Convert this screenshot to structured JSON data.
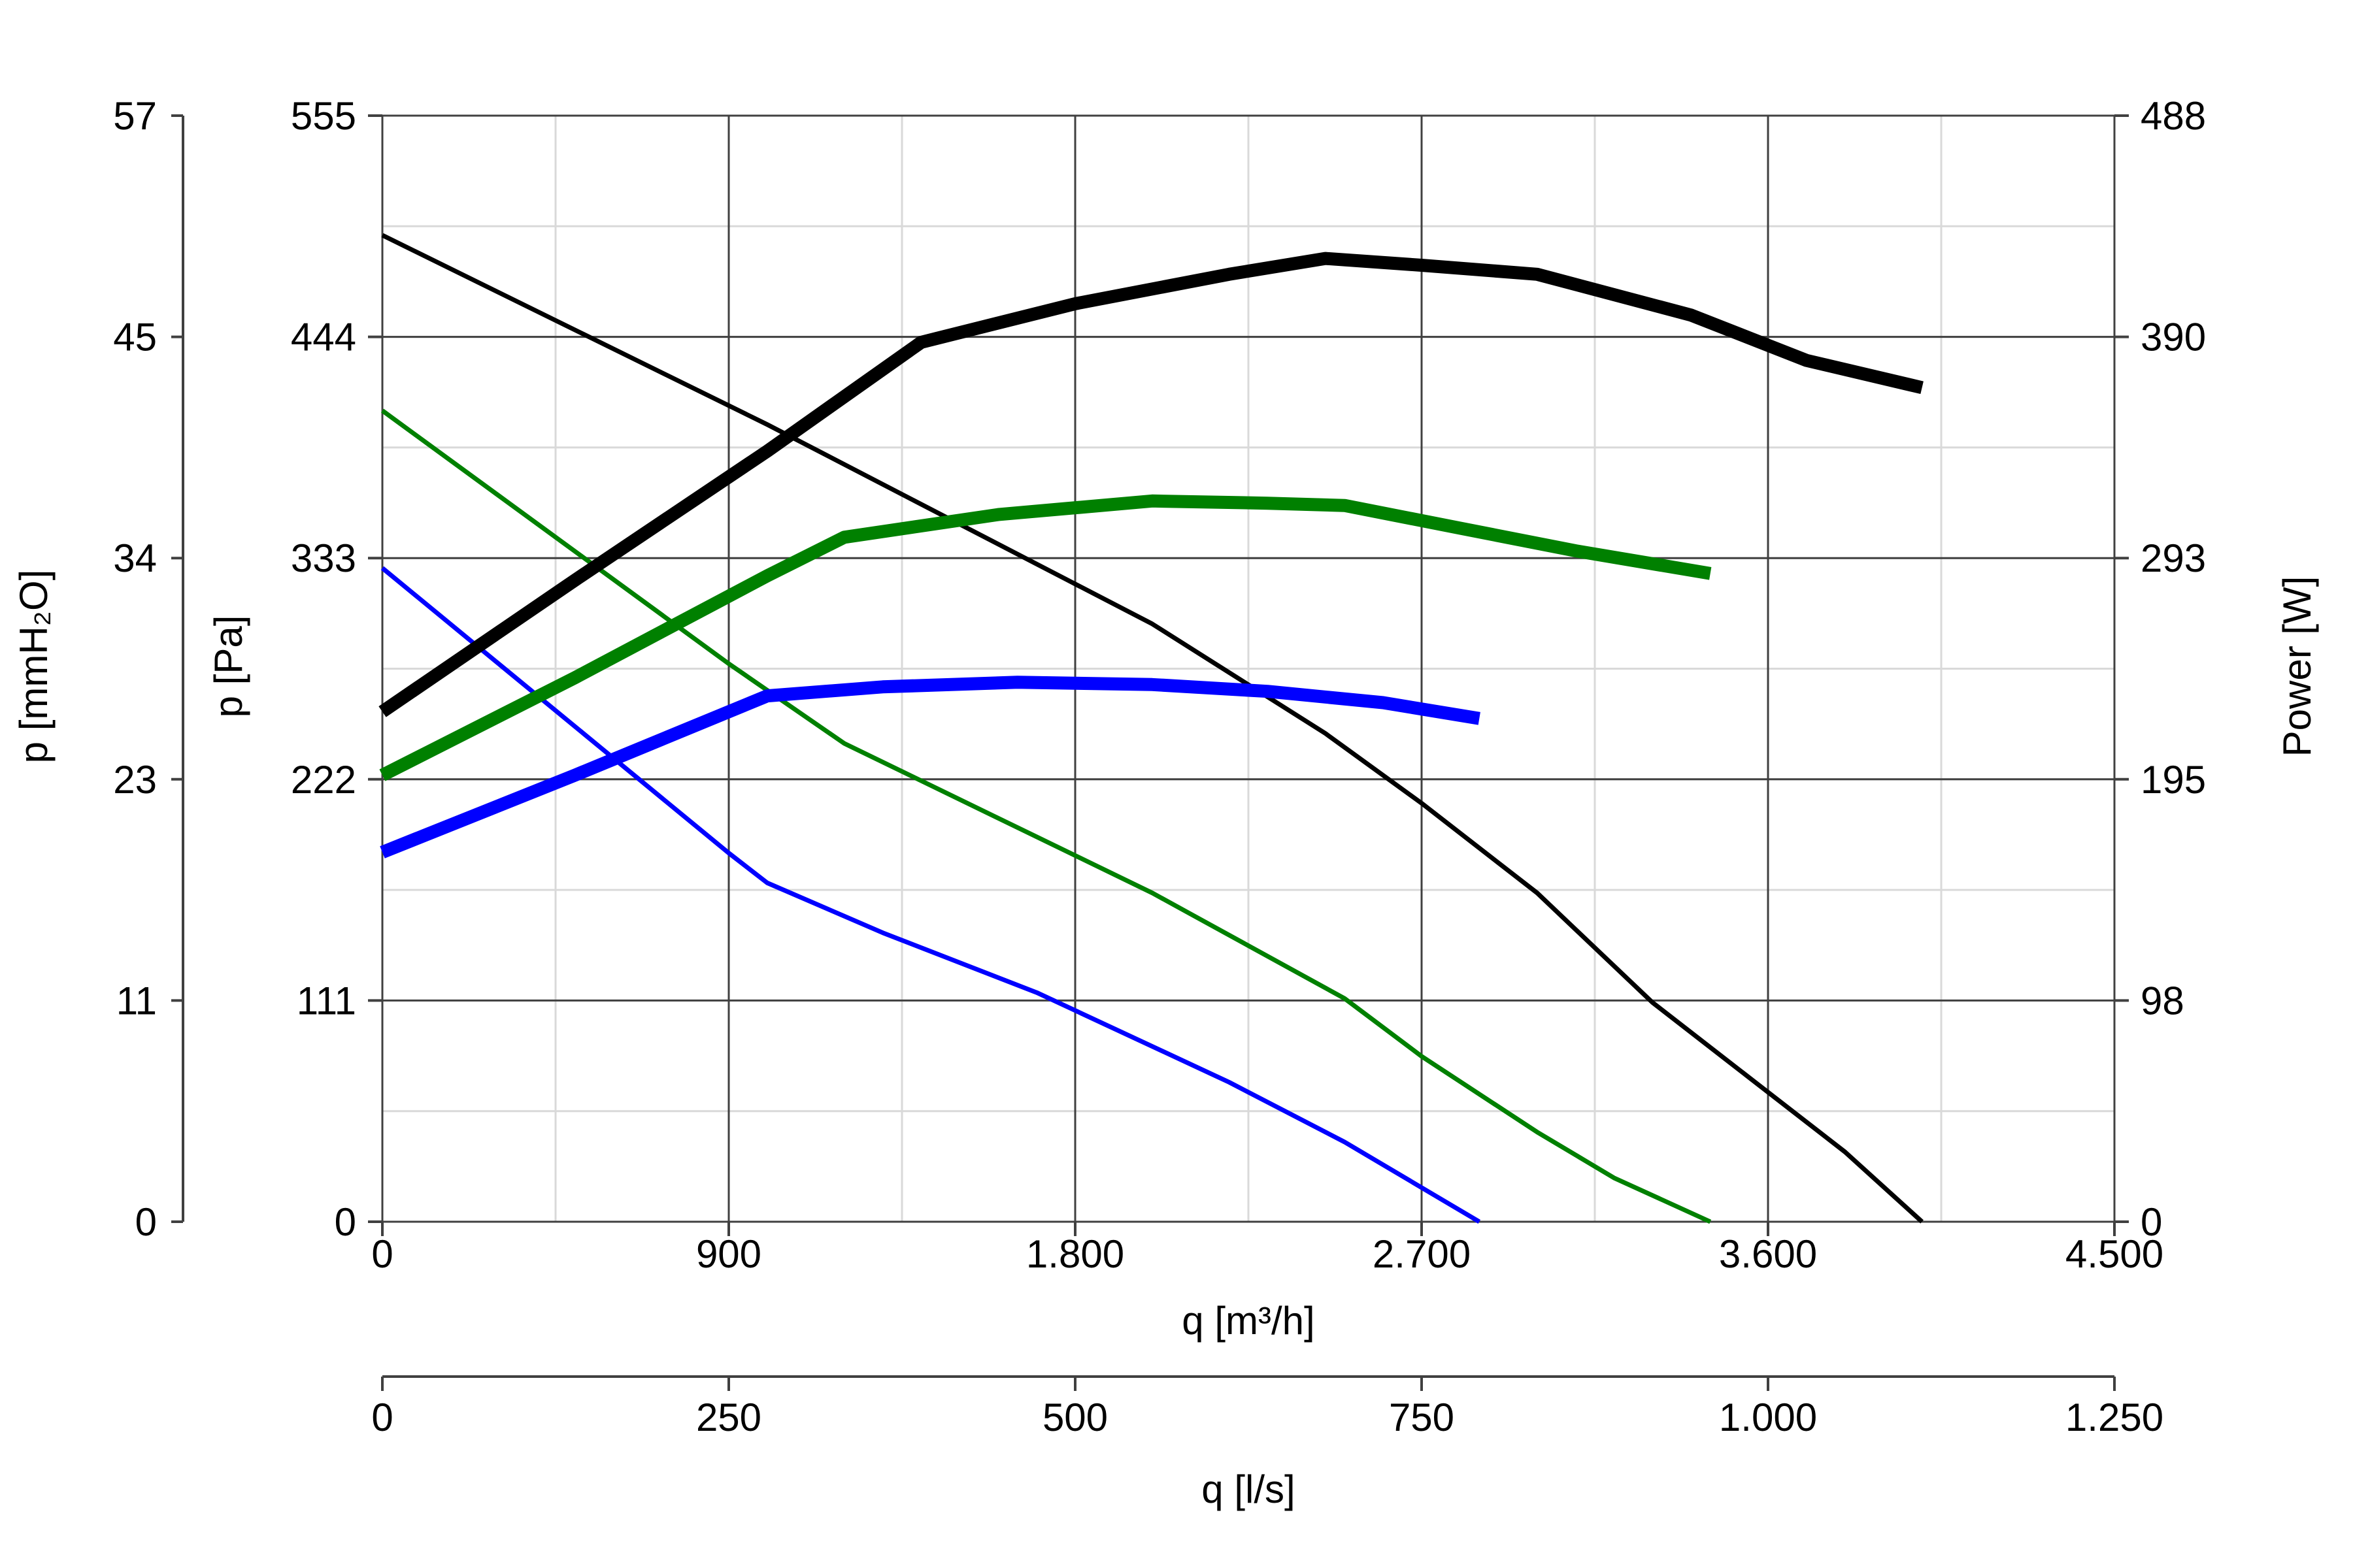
{
  "chart_data": {
    "type": "line",
    "x_axis": {
      "label": "q [m³/h]",
      "range": [
        0,
        4500
      ],
      "ticks": [
        0,
        900,
        1800,
        2700,
        3600,
        4500
      ],
      "tick_labels": [
        "0",
        "900",
        "1.800",
        "2.700",
        "3.600",
        "4.500"
      ],
      "minor_grid_step": 450
    },
    "x2_axis": {
      "label": "q [l/s]",
      "range": [
        0,
        1250
      ],
      "ticks": [
        0,
        250,
        500,
        750,
        1000,
        1250
      ],
      "tick_labels": [
        "0",
        "250",
        "500",
        "750",
        "1.000",
        "1.250"
      ]
    },
    "y_axis": {
      "label": "p [Pa]",
      "range": [
        0,
        555
      ],
      "ticks": [
        0,
        111,
        222,
        333,
        444,
        555
      ],
      "tick_labels": [
        "0",
        "111",
        "222",
        "333",
        "444",
        "555"
      ],
      "minor_grid_step": 55.5
    },
    "y_outer_axis": {
      "label": "p [mmH₂O]",
      "ticks": [
        0,
        11,
        23,
        34,
        45,
        57
      ],
      "tick_labels": [
        "0",
        "11",
        "23",
        "34",
        "45",
        "57"
      ]
    },
    "y2_axis": {
      "label": "Power [W]",
      "range": [
        0,
        488
      ],
      "ticks": [
        0,
        98,
        195,
        293,
        390,
        488
      ],
      "tick_labels": [
        "0",
        "98",
        "195",
        "293",
        "390",
        "488"
      ]
    },
    "grid": true,
    "colors": {
      "black": "#000000",
      "green": "#008000",
      "blue": "#0000ff",
      "grid_major": "#404040",
      "grid_minor": "#d9d9d9"
    },
    "series": [
      {
        "kind": "pressure",
        "axis": "left",
        "color": "#000000",
        "x": [
          0,
          1000,
          2000,
          2450,
          2700,
          3000,
          3300,
          3500,
          3800,
          4000
        ],
        "y": [
          495,
          400,
          300,
          245,
          210,
          165,
          110,
          80,
          35,
          0
        ]
      },
      {
        "kind": "pressure",
        "axis": "left",
        "color": "#008000",
        "x": [
          0,
          900,
          1200,
          2000,
          2500,
          2700,
          3000,
          3200,
          3450
        ],
        "y": [
          407,
          280,
          240,
          165,
          112,
          83,
          45,
          22,
          0
        ]
      },
      {
        "kind": "pressure",
        "axis": "left",
        "color": "#0000ff",
        "x": [
          0,
          900,
          1000,
          1300,
          1700,
          2200,
          2500,
          2850
        ],
        "y": [
          328,
          185,
          170,
          145,
          115,
          70,
          40,
          0
        ]
      },
      {
        "kind": "power",
        "axis": "right",
        "color": "#000000",
        "x": [
          0,
          500,
          1000,
          1400,
          1800,
          2200,
          2450,
          2700,
          3000,
          3400,
          3700,
          4000
        ],
        "y": [
          225,
          283,
          340,
          388,
          405,
          418,
          425,
          422,
          418,
          400,
          380,
          368
        ]
      },
      {
        "kind": "power",
        "axis": "right",
        "color": "#008000",
        "x": [
          0,
          500,
          1000,
          1200,
          1600,
          2000,
          2300,
          2500,
          2800,
          3100,
          3450
        ],
        "y": [
          197,
          240,
          285,
          302,
          312,
          318,
          317,
          316,
          306,
          296,
          286
        ]
      },
      {
        "kind": "power",
        "axis": "right",
        "color": "#0000ff",
        "x": [
          0,
          500,
          1000,
          1300,
          1650,
          2000,
          2300,
          2600,
          2850
        ],
        "y": [
          163,
          197,
          232,
          236,
          238,
          237,
          234,
          229,
          222
        ]
      }
    ]
  }
}
